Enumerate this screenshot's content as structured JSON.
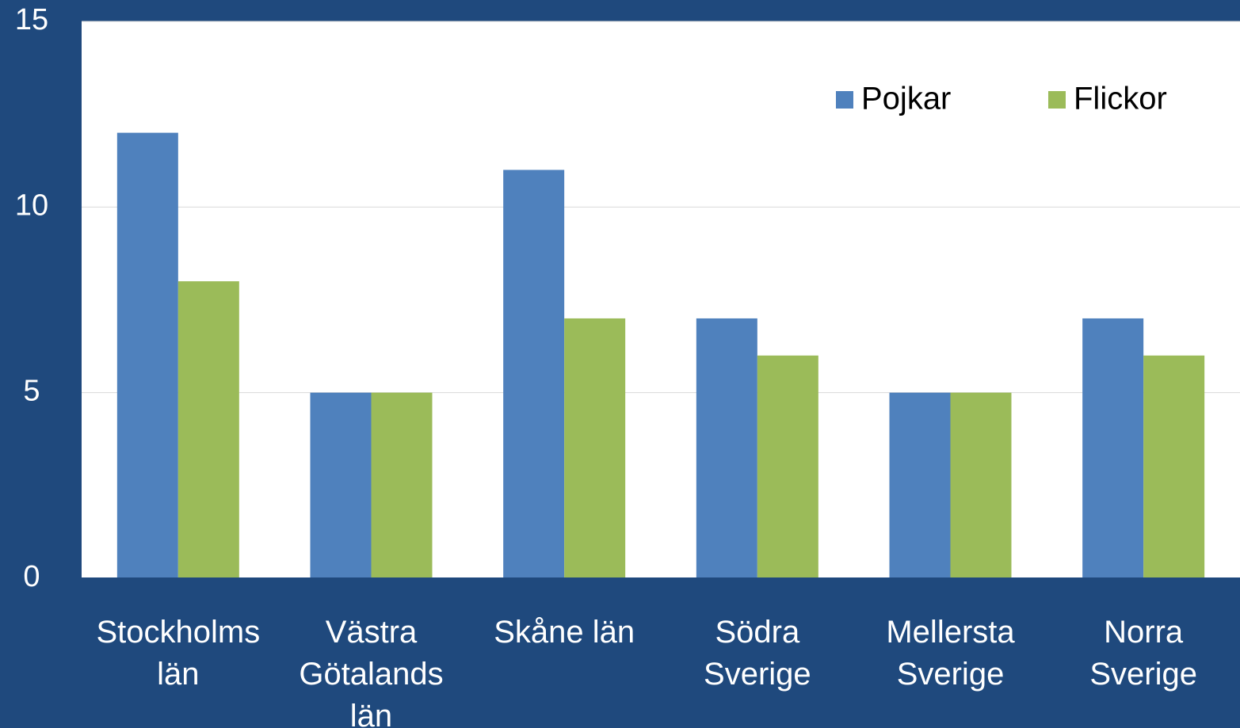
{
  "chart_data": {
    "type": "bar",
    "categories": [
      "Stockholms län",
      "Västra Götalands län",
      "Skåne län",
      "Södra Sverige",
      "Mellersta Sverige",
      "Norra Sverige"
    ],
    "series": [
      {
        "name": "Pojkar",
        "color": "#4f81bd",
        "values": [
          12,
          5,
          11,
          7,
          5,
          7
        ]
      },
      {
        "name": "Flickor",
        "color": "#9bbb59",
        "values": [
          8,
          5,
          7,
          6,
          5,
          6
        ]
      }
    ],
    "ylim": [
      0,
      15
    ],
    "yticks": [
      0,
      5,
      10,
      15
    ],
    "grid": true,
    "legend": "top-right"
  }
}
